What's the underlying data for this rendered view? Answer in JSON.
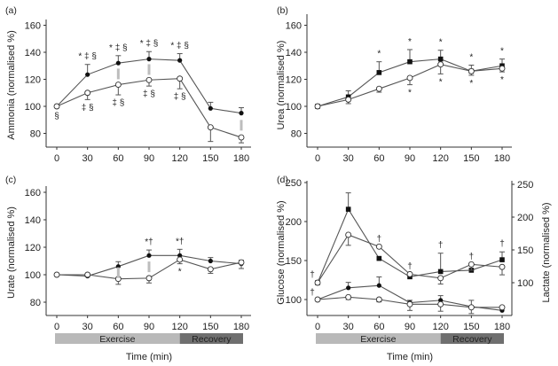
{
  "chart_data": [
    {
      "panel": "(a)",
      "type": "line",
      "ylabel": "Ammonia (normalised %)",
      "xlabel": "",
      "x": [
        0,
        30,
        60,
        90,
        120,
        150,
        180
      ],
      "xticks": [
        "0",
        "30",
        "60",
        "90",
        "120",
        "150",
        "180"
      ],
      "yticks": [
        "80",
        "100",
        "120",
        "140",
        "160"
      ],
      "ylim": [
        70,
        168
      ],
      "series": [
        {
          "name": "filled",
          "marker": "filled-circle",
          "values": [
            100,
            123.5,
            132,
            135,
            134,
            98.5,
            95
          ],
          "err_up": [
            0,
            7.5,
            5.5,
            5.5,
            5,
            4.5,
            4
          ]
        },
        {
          "name": "open",
          "marker": "open-circle",
          "values": [
            100,
            110,
            116,
            119.5,
            120.5,
            84.5,
            77
          ],
          "err_down": [
            0,
            5,
            7.5,
            4.5,
            7.5,
            10.5,
            4
          ]
        }
      ],
      "annotations": [
        {
          "x": 0,
          "text": "§",
          "pos": "below"
        },
        {
          "x": 30,
          "text": "* ‡ §",
          "pos": "above"
        },
        {
          "x": 60,
          "text": "* ‡ §",
          "pos": "above"
        },
        {
          "x": 90,
          "text": "* ‡ §",
          "pos": "above"
        },
        {
          "x": 120,
          "text": "* ‡ §",
          "pos": "above"
        },
        {
          "x": 30,
          "text": "‡ §",
          "pos": "below"
        },
        {
          "x": 60,
          "text": "‡ §",
          "pos": "below"
        },
        {
          "x": 90,
          "text": "‡ §",
          "pos": "below"
        },
        {
          "x": 120,
          "text": "‡ §",
          "pos": "below"
        },
        {
          "x": 60,
          "text": "||",
          "pos": "between"
        },
        {
          "x": 90,
          "text": "||",
          "pos": "between"
        },
        {
          "x": 180,
          "text": "||",
          "pos": "between"
        }
      ]
    },
    {
      "panel": "(b)",
      "type": "line",
      "ylabel": "Urea (normalised %)",
      "xlabel": "",
      "x": [
        0,
        30,
        60,
        90,
        120,
        150,
        180
      ],
      "xticks": [
        "0",
        "30",
        "60",
        "90",
        "120",
        "150",
        "180"
      ],
      "yticks": [
        "80",
        "100",
        "120",
        "140",
        "160"
      ],
      "ylim": [
        70,
        168
      ],
      "series": [
        {
          "name": "filled",
          "marker": "filled-square",
          "values": [
            100,
            107,
            125,
            133,
            135,
            126,
            130
          ],
          "err_up": [
            0,
            4.5,
            8,
            9,
            6.5,
            4.5,
            5
          ]
        },
        {
          "name": "open",
          "marker": "open-circle",
          "values": [
            100,
            105,
            113,
            121,
            131,
            126,
            128
          ],
          "err_down": [
            0,
            3,
            2.5,
            5,
            7,
            3,
            2.5
          ]
        }
      ],
      "annotations": [
        {
          "x": 60,
          "text": "*",
          "pos": "above"
        },
        {
          "x": 90,
          "text": "*",
          "pos": "above"
        },
        {
          "x": 120,
          "text": "*",
          "pos": "above"
        },
        {
          "x": 150,
          "text": "*",
          "pos": "above"
        },
        {
          "x": 180,
          "text": "*",
          "pos": "above"
        },
        {
          "x": 90,
          "text": "*",
          "pos": "below"
        },
        {
          "x": 120,
          "text": "*",
          "pos": "below"
        },
        {
          "x": 150,
          "text": "*",
          "pos": "below"
        },
        {
          "x": 180,
          "text": "*",
          "pos": "below"
        }
      ]
    },
    {
      "panel": "(c)",
      "type": "line",
      "ylabel": "Urate (normalised %)",
      "xlabel": "Time (min)",
      "x": [
        0,
        30,
        60,
        90,
        120,
        150,
        180
      ],
      "xticks": [
        "0",
        "30",
        "60",
        "90",
        "120",
        "150",
        "180"
      ],
      "yticks": [
        "80",
        "100",
        "120",
        "140",
        "160"
      ],
      "ylim": [
        70,
        168
      ],
      "series": [
        {
          "name": "filled",
          "marker": "filled-circle",
          "values": [
            100,
            99,
            106,
            114,
            114,
            110,
            108
          ],
          "err_up": [
            0,
            1.5,
            3.5,
            4,
            4.5,
            2.5,
            2.5
          ]
        },
        {
          "name": "open",
          "marker": "open-circle",
          "values": [
            100,
            100,
            97,
            97.5,
            111,
            104,
            109
          ],
          "err_down": [
            0,
            1.5,
            4,
            3.5,
            3,
            3,
            4.5
          ]
        }
      ],
      "annotations": [
        {
          "x": 90,
          "text": "*†",
          "pos": "above"
        },
        {
          "x": 120,
          "text": "*†",
          "pos": "above"
        },
        {
          "x": 120,
          "text": "*",
          "pos": "below"
        },
        {
          "x": 60,
          "text": "||",
          "pos": "between"
        },
        {
          "x": 90,
          "text": "||",
          "pos": "between"
        }
      ],
      "phase_bar": [
        {
          "label": "Exercise",
          "from": 0,
          "to": 120
        },
        {
          "label": "Recovery",
          "from": 120,
          "to": 180
        }
      ]
    },
    {
      "panel": "(d)",
      "type": "line",
      "ylabel": "Glucose (normalised %)",
      "ylabel_right": "Lactate (normalised %)",
      "xlabel": "Time (min)",
      "x": [
        0,
        30,
        60,
        90,
        120,
        150,
        180
      ],
      "xticks": [
        "0",
        "30",
        "60",
        "90",
        "120",
        "150",
        "180"
      ],
      "yticks": [
        "100",
        "150",
        "200",
        "250"
      ],
      "yticks_right": [
        "100",
        "150",
        "200",
        "250"
      ],
      "ylim": [
        80,
        250
      ],
      "ylim_right": [
        50,
        250
      ],
      "series": [
        {
          "name": "glucose-filled",
          "axis": "left",
          "marker": "filled-circle",
          "values": [
            100,
            115,
            118,
            96,
            99,
            91,
            86
          ],
          "err_up": [
            0,
            7,
            11,
            3,
            6,
            8,
            0
          ]
        },
        {
          "name": "glucose-open",
          "axis": "left",
          "marker": "open-circle",
          "values": [
            100,
            103,
            100,
            94,
            94,
            90,
            90
          ],
          "err_down": [
            0,
            3,
            3,
            8,
            9,
            8,
            0
          ]
        },
        {
          "name": "lactate-filled",
          "axis": "right",
          "marker": "filled-square",
          "values": [
            100,
            212,
            137,
            109,
            117,
            119,
            135
          ],
          "err_up": [
            0,
            25,
            0,
            0,
            28,
            0,
            12
          ]
        },
        {
          "name": "lactate-open",
          "axis": "right",
          "marker": "open-circle",
          "values": [
            100,
            173,
            155,
            113,
            107,
            128,
            124
          ],
          "err_down": [
            0,
            16,
            0,
            0,
            9,
            9,
            12
          ]
        }
      ],
      "annotations": [
        {
          "x": 0,
          "text": "†",
          "pos": "above-upper"
        },
        {
          "x": 0,
          "text": "†",
          "pos": "between"
        },
        {
          "x": 60,
          "text": "†",
          "pos": "above"
        },
        {
          "x": 90,
          "text": "†",
          "pos": "above"
        },
        {
          "x": 120,
          "text": "†",
          "pos": "above"
        },
        {
          "x": 150,
          "text": "†",
          "pos": "above"
        },
        {
          "x": 180,
          "text": "†",
          "pos": "above"
        }
      ],
      "phase_bar": [
        {
          "label": "Exercise",
          "from": 0,
          "to": 120
        },
        {
          "label": "Recovery",
          "from": 120,
          "to": 180
        }
      ]
    }
  ],
  "colors": {
    "line": "#555555",
    "axis": "#333333",
    "exercise_bar": "#b9b9b9",
    "recovery_bar": "#6f6f6f",
    "sig_bar": "#bdbdbd"
  }
}
